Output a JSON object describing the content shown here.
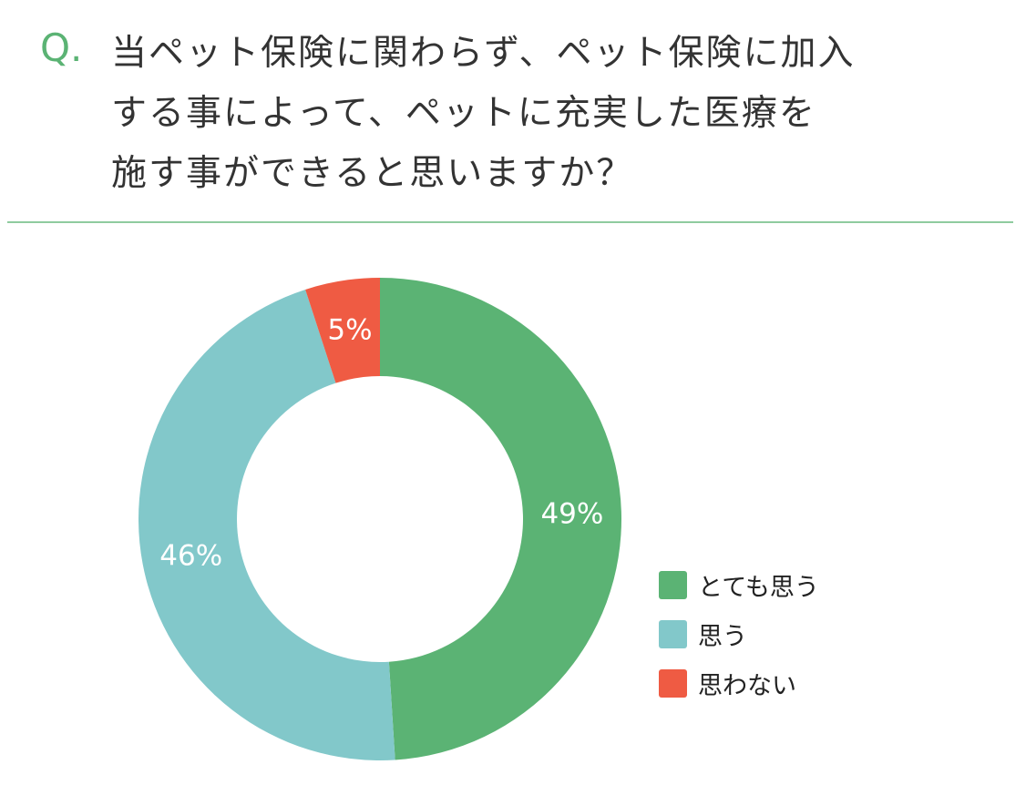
{
  "header": {
    "q_label": "Q.",
    "title_lines": [
      "当ペット保険に関わらず、ペット保険に加入",
      "する事によって、ペットに充実した医療を",
      "施す事ができると思いますか？"
    ]
  },
  "chart_data": {
    "type": "pie",
    "donut": true,
    "title": "当ペット保険に関わらず、ペット保険に加入する事によって、ペットに充実した医療を施す事ができると思いますか？",
    "categories": [
      "とても思う",
      "思う",
      "思わない"
    ],
    "values": [
      49,
      46,
      5
    ],
    "labels": [
      "49%",
      "46%",
      "5%"
    ],
    "colors": [
      "#5bb374",
      "#82c8ca",
      "#ef5b43"
    ],
    "legend_position": "right",
    "start": "top",
    "direction": "clockwise"
  }
}
